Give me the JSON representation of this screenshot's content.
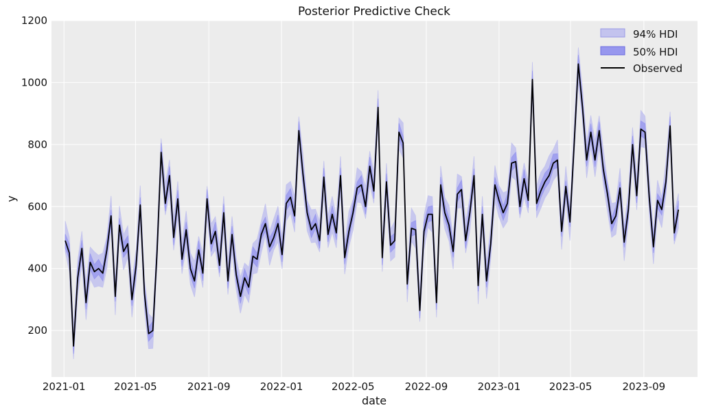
{
  "chart_data": {
    "type": "line",
    "title": "Posterior Predictive Check",
    "xlabel": "date",
    "ylabel": "y",
    "ylim": [
      50,
      1200
    ],
    "xlim": [
      "2020-12-11",
      "2023-11-30"
    ],
    "yticks": [
      200,
      400,
      600,
      800,
      1000,
      1200
    ],
    "xticks": [
      "2021-01",
      "2021-05",
      "2021-09",
      "2022-01",
      "2022-05",
      "2022-09",
      "2023-01",
      "2023-05",
      "2023-09"
    ],
    "grid": true,
    "legend_position": "top-right",
    "colors": {
      "hdi94": "#c3c3ee",
      "hdi50": "#9797ee",
      "observed": "#000000",
      "background": "#ececec",
      "grid": "#ffffff"
    },
    "legend": [
      "94% HDI",
      "50% HDI",
      "Observed"
    ],
    "observed": {
      "start": "2021-01-03",
      "step_days": 7,
      "values": [
        490,
        450,
        150,
        370,
        465,
        290,
        420,
        390,
        400,
        385,
        460,
        570,
        310,
        540,
        455,
        480,
        300,
        410,
        605,
        320,
        190,
        200,
        450,
        775,
        610,
        700,
        500,
        625,
        430,
        525,
        400,
        360,
        460,
        385,
        625,
        480,
        520,
        410,
        580,
        360,
        510,
        380,
        310,
        370,
        340,
        440,
        430,
        510,
        545,
        470,
        500,
        545,
        445,
        610,
        630,
        570,
        845,
        705,
        580,
        525,
        545,
        490,
        695,
        510,
        575,
        515,
        700,
        435,
        520,
        580,
        660,
        670,
        600,
        730,
        650,
        920,
        435,
        680,
        475,
        490,
        840,
        805,
        350,
        530,
        525,
        265,
        520,
        575,
        575,
        290,
        670,
        580,
        540,
        455,
        640,
        655,
        490,
        580,
        700,
        345,
        575,
        360,
        480,
        670,
        620,
        580,
        610,
        740,
        745,
        600,
        690,
        620,
        1010,
        610,
        650,
        680,
        700,
        740,
        750,
        520,
        665,
        550,
        800,
        1060,
        920,
        750,
        840,
        750,
        845,
        720,
        640,
        545,
        570,
        660,
        485,
        590,
        800,
        635,
        850,
        840,
        630,
        470,
        620,
        590,
        680,
        860,
        515,
        590
      ]
    }
  }
}
